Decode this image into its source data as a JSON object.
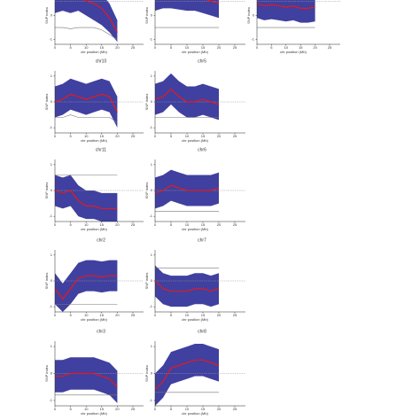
{
  "chart_data": [
    {
      "type": "line",
      "xlabel": "chr position (Mb)",
      "ylabel": "SNP index",
      "x": [
        0,
        2.5,
        5,
        7.5,
        10,
        12.5,
        15,
        17.5,
        20
      ],
      "xlim": [
        0,
        25
      ],
      "xticks": [
        0,
        5,
        10,
        15,
        20,
        25
      ],
      "ylim": [
        -1.2,
        1.2
      ],
      "yticks": [
        -1,
        0,
        1
      ],
      "hline": 0.6,
      "band": {
        "color": "#1f1f8f",
        "low": [
          0.1,
          0.2,
          0.1,
          0.2,
          0,
          -0.2,
          -0.4,
          -0.7,
          -1.1
        ],
        "high": [
          1.2,
          1.2,
          1.2,
          1.2,
          1.1,
          1.0,
          0.9,
          0.5,
          -0.2
        ]
      },
      "series": [
        {
          "color": "#e41a1c",
          "values": [
            0.7,
            0.8,
            0.75,
            0.8,
            0.6,
            0.5,
            0.3,
            -0.1,
            -0.7
          ]
        },
        {
          "color": "#777777",
          "values": [
            -0.5,
            -0.5,
            -0.55,
            -0.5,
            -0.5,
            -0.5,
            -0.6,
            -0.8,
            -1.0
          ]
        }
      ]
    },
    {
      "type": "line",
      "xlabel": "chr position (Mb)",
      "ylabel": "SNP index",
      "x": [
        0,
        2.5,
        5,
        7.5,
        10,
        12.5,
        15,
        17.5,
        20
      ],
      "xlim": [
        0,
        25
      ],
      "xticks": [
        0,
        5,
        10,
        15,
        20,
        25
      ],
      "ylim": [
        -1.2,
        1.2
      ],
      "yticks": [
        -1,
        0,
        1
      ],
      "hline": 0.6,
      "band": {
        "color": "#1f1f8f",
        "low": [
          0.2,
          0.3,
          0.3,
          0.25,
          0.2,
          0.2,
          0.1,
          0,
          -0.1
        ],
        "high": [
          1.2,
          1.2,
          1.2,
          1.2,
          1.2,
          1.2,
          1.2,
          1.2,
          1.1
        ]
      },
      "series": [
        {
          "color": "#e41a1c",
          "values": [
            0.8,
            0.9,
            0.9,
            0.85,
            0.8,
            0.8,
            0.7,
            0.6,
            0.5
          ]
        },
        {
          "color": "#777777",
          "values": [
            -0.5,
            -0.5,
            -0.5,
            -0.5,
            -0.5,
            -0.5,
            -0.5,
            -0.5,
            -0.5
          ]
        }
      ]
    },
    {
      "type": "line",
      "xlabel": "chr position (Mb)",
      "ylabel": "SNP index",
      "x": [
        0,
        2.5,
        5,
        7.5,
        10,
        12.5,
        15,
        17.5,
        20
      ],
      "xlim": [
        0,
        25
      ],
      "xticks": [
        0,
        5,
        10,
        15,
        20,
        25
      ],
      "ylim": [
        -1.2,
        1.2
      ],
      "yticks": [
        -1,
        0,
        1
      ],
      "hline": 0.6,
      "band": {
        "color": "#1f1f8f",
        "low": [
          -0.1,
          -0.2,
          -0.15,
          -0.2,
          -0.25,
          -0.2,
          -0.3,
          -0.3,
          -0.25
        ],
        "high": [
          1.1,
          1.0,
          1.05,
          1.0,
          0.95,
          1.0,
          0.9,
          0.9,
          0.95
        ]
      },
      "series": [
        {
          "color": "#e41a1c",
          "values": [
            0.5,
            0.4,
            0.45,
            0.4,
            0.35,
            0.4,
            0.3,
            0.3,
            0.35
          ]
        },
        {
          "color": "#777777",
          "values": [
            -0.5,
            -0.5,
            -0.5,
            -0.5,
            -0.5,
            -0.5,
            -0.5,
            -0.5,
            -0.5
          ]
        }
      ]
    },
    {
      "type": "line",
      "title": "chr10",
      "xlabel": "chr position (Mb)",
      "ylabel": "SNP index",
      "x": [
        0,
        2.5,
        5,
        7.5,
        10,
        12.5,
        15,
        17.5,
        20
      ],
      "xlim": [
        0,
        25
      ],
      "xticks": [
        0,
        5,
        10,
        15,
        20,
        25
      ],
      "ylim": [
        -1.2,
        1.2
      ],
      "yticks": [
        -1,
        0,
        1
      ],
      "hline": 0,
      "band": {
        "color": "#1f1f8f",
        "low": [
          -0.6,
          -0.5,
          -0.3,
          -0.4,
          -0.5,
          -0.4,
          -0.3,
          -0.4,
          -1.0
        ],
        "high": [
          0.6,
          0.7,
          0.9,
          0.8,
          0.7,
          0.8,
          0.9,
          0.8,
          0.2
        ]
      },
      "series": [
        {
          "color": "#e41a1c",
          "values": [
            0.0,
            0.1,
            0.3,
            0.2,
            0.1,
            0.2,
            0.3,
            0.2,
            -0.4
          ]
        },
        {
          "color": "#777777",
          "values": [
            -0.6,
            -0.6,
            -0.5,
            -0.6,
            -0.6,
            -0.6,
            -0.6,
            -0.6,
            -0.8
          ]
        }
      ]
    },
    {
      "type": "line",
      "title": "chr5",
      "xlabel": "chr position (Mb)",
      "ylabel": "SNP index",
      "x": [
        0,
        2.5,
        5,
        7.5,
        10,
        12.5,
        15,
        17.5,
        20
      ],
      "xlim": [
        0,
        25
      ],
      "xticks": [
        0,
        5,
        10,
        15,
        20,
        25
      ],
      "ylim": [
        -1.2,
        1.2
      ],
      "yticks": [
        -1,
        0,
        1
      ],
      "hline": 0,
      "band": {
        "color": "#1f1f8f",
        "low": [
          -0.5,
          -0.4,
          -0.1,
          -0.4,
          -0.6,
          -0.6,
          -0.5,
          -0.6,
          -0.7
        ],
        "high": [
          0.7,
          0.8,
          1.1,
          0.8,
          0.6,
          0.6,
          0.7,
          0.6,
          0.5
        ]
      },
      "series": [
        {
          "color": "#e41a1c",
          "values": [
            0.1,
            0.2,
            0.5,
            0.2,
            0.0,
            0.0,
            0.1,
            0.0,
            -0.1
          ]
        },
        {
          "color": "#777777",
          "values": [
            -0.6,
            -0.6,
            -0.6,
            -0.6,
            -0.6,
            -0.6,
            -0.6,
            -0.6,
            -0.6
          ]
        }
      ]
    },
    {
      "type": "line",
      "title": "chr11",
      "xlabel": "chr position (Mb)",
      "ylabel": "SNP index",
      "x": [
        0,
        2.5,
        5,
        7.5,
        10,
        12.5,
        15,
        17.5,
        20
      ],
      "xlim": [
        0,
        25
      ],
      "xticks": [
        0,
        5,
        10,
        15,
        20,
        25
      ],
      "ylim": [
        -1.2,
        1.2
      ],
      "yticks": [
        -1,
        0,
        1
      ],
      "hline": 0,
      "band": {
        "color": "#1f1f8f",
        "low": [
          -0.6,
          -0.7,
          -0.6,
          -1.0,
          -1.1,
          -1.1,
          -1.2,
          -1.2,
          -1.2
        ],
        "high": [
          0.6,
          0.5,
          0.6,
          0.2,
          0.0,
          0.0,
          -0.1,
          -0.1,
          -0.1
        ]
      },
      "series": [
        {
          "color": "#e41a1c",
          "values": [
            0.0,
            -0.1,
            0.0,
            -0.4,
            -0.6,
            -0.6,
            -0.7,
            -0.7,
            -0.7
          ]
        },
        {
          "color": "#777777",
          "values": [
            0.6,
            0.6,
            0.6,
            0.6,
            0.6,
            0.6,
            0.6,
            0.6,
            0.6
          ]
        }
      ]
    },
    {
      "type": "line",
      "title": "chr6",
      "xlabel": "chr position (Mb)",
      "ylabel": "SNP index",
      "x": [
        0,
        2.5,
        5,
        7.5,
        10,
        12.5,
        15,
        17.5,
        20
      ],
      "xlim": [
        0,
        25
      ],
      "xticks": [
        0,
        5,
        10,
        15,
        20,
        25
      ],
      "ylim": [
        -1.2,
        1.2
      ],
      "yticks": [
        -1,
        0,
        1
      ],
      "hline": 0,
      "band": {
        "color": "#1f1f8f",
        "low": [
          -0.7,
          -0.6,
          -0.4,
          -0.5,
          -0.6,
          -0.6,
          -0.6,
          -0.6,
          -0.5
        ],
        "high": [
          0.5,
          0.6,
          0.8,
          0.7,
          0.6,
          0.6,
          0.6,
          0.6,
          0.7
        ]
      },
      "series": [
        {
          "color": "#e41a1c",
          "values": [
            -0.1,
            0.0,
            0.2,
            0.1,
            0.0,
            0.0,
            0.0,
            0.0,
            0.1
          ]
        },
        {
          "color": "#777777",
          "values": [
            -0.8,
            -0.8,
            -0.8,
            -0.8,
            -0.8,
            -0.8,
            -0.8,
            -0.8,
            -0.8
          ]
        }
      ]
    },
    {
      "type": "line",
      "title": "chr2",
      "xlabel": "chr position (Mb)",
      "ylabel": "SNP index",
      "x": [
        0,
        2.5,
        5,
        7.5,
        10,
        12.5,
        15,
        17.5,
        20
      ],
      "xlim": [
        0,
        25
      ],
      "xticks": [
        0,
        5,
        10,
        15,
        20,
        25
      ],
      "ylim": [
        -1.2,
        1.2
      ],
      "yticks": [
        -1,
        0,
        1
      ],
      "hline": 0,
      "band": {
        "color": "#1f1f8f",
        "low": [
          -0.9,
          -1.2,
          -0.9,
          -0.5,
          -0.4,
          -0.4,
          -0.45,
          -0.4,
          -0.4
        ],
        "high": [
          0.3,
          -0.1,
          0.3,
          0.7,
          0.8,
          0.8,
          0.75,
          0.8,
          0.8
        ]
      },
      "series": [
        {
          "color": "#e41a1c",
          "values": [
            -0.3,
            -0.7,
            -0.3,
            0.1,
            0.2,
            0.2,
            0.15,
            0.2,
            0.2
          ]
        },
        {
          "color": "#777777",
          "values": [
            -0.9,
            -0.9,
            -0.9,
            -0.9,
            -0.9,
            -0.9,
            -0.9,
            -0.9,
            -0.9
          ]
        }
      ]
    },
    {
      "type": "line",
      "title": "chr7",
      "xlabel": "chr position (Mb)",
      "ylabel": "SNP index",
      "x": [
        0,
        2.5,
        5,
        7.5,
        10,
        12.5,
        15,
        17.5,
        20
      ],
      "xlim": [
        0,
        25
      ],
      "xticks": [
        0,
        5,
        10,
        15,
        20,
        25
      ],
      "ylim": [
        -1.2,
        1.2
      ],
      "yticks": [
        -1,
        0,
        1
      ],
      "hline": 0,
      "band": {
        "color": "#1f1f8f",
        "low": [
          -0.6,
          -0.9,
          -1.0,
          -1.0,
          -1.0,
          -0.9,
          -0.9,
          -1.0,
          -0.9
        ],
        "high": [
          0.6,
          0.3,
          0.2,
          0.2,
          0.2,
          0.3,
          0.3,
          0.2,
          0.3
        ]
      },
      "series": [
        {
          "color": "#e41a1c",
          "values": [
            0.0,
            -0.3,
            -0.4,
            -0.4,
            -0.4,
            -0.3,
            -0.3,
            -0.4,
            -0.3
          ]
        },
        {
          "color": "#777777",
          "values": [
            0.5,
            0.5,
            0.5,
            0.5,
            0.5,
            0.5,
            0.5,
            0.5,
            0.5
          ]
        }
      ]
    },
    {
      "type": "line",
      "title": "chr3",
      "xlabel": "chr position (Mb)",
      "ylabel": "SNP index",
      "x": [
        0,
        2.5,
        5,
        7.5,
        10,
        12.5,
        15,
        17.5,
        20
      ],
      "xlim": [
        0,
        25
      ],
      "xticks": [
        0,
        5,
        10,
        15,
        20,
        25
      ],
      "ylim": [
        -1.2,
        1.2
      ],
      "yticks": [
        -1,
        0,
        1
      ],
      "hline": 0,
      "band": {
        "color": "#1f1f8f",
        "low": [
          -0.7,
          -0.7,
          -0.6,
          -0.6,
          -0.6,
          -0.6,
          -0.7,
          -0.8,
          -1.1
        ],
        "high": [
          0.5,
          0.5,
          0.6,
          0.6,
          0.6,
          0.6,
          0.5,
          0.4,
          0.1
        ]
      },
      "series": [
        {
          "color": "#e41a1c",
          "values": [
            -0.1,
            -0.1,
            0.0,
            0.0,
            0.0,
            0.0,
            -0.1,
            -0.2,
            -0.5
          ]
        },
        {
          "color": "#777777",
          "values": [
            -0.8,
            -0.8,
            -0.8,
            -0.8,
            -0.8,
            -0.8,
            -0.8,
            -0.8,
            -0.8
          ]
        }
      ]
    },
    {
      "type": "line",
      "title": "chr8",
      "xlabel": "chr position (Mb)",
      "ylabel": "SNP index",
      "x": [
        0,
        2.5,
        5,
        7.5,
        10,
        12.5,
        15,
        17.5,
        20
      ],
      "xlim": [
        0,
        25
      ],
      "xticks": [
        0,
        5,
        10,
        15,
        20,
        25
      ],
      "ylim": [
        -1.2,
        1.2
      ],
      "yticks": [
        -1,
        0,
        1
      ],
      "hline": 0,
      "band": {
        "color": "#1f1f8f",
        "low": [
          -1.2,
          -0.9,
          -0.4,
          -0.3,
          -0.2,
          -0.1,
          -0.1,
          -0.2,
          -0.3
        ],
        "high": [
          0.0,
          0.3,
          0.8,
          0.9,
          1.0,
          1.1,
          1.1,
          1.0,
          0.9
        ]
      },
      "series": [
        {
          "color": "#e41a1c",
          "values": [
            -0.6,
            -0.3,
            0.2,
            0.3,
            0.4,
            0.5,
            0.5,
            0.4,
            0.3
          ]
        },
        {
          "color": "#777777",
          "values": [
            -0.7,
            -0.7,
            -0.7,
            -0.7,
            -0.7,
            -0.7,
            -0.7,
            -0.7,
            -0.7
          ]
        }
      ]
    }
  ]
}
